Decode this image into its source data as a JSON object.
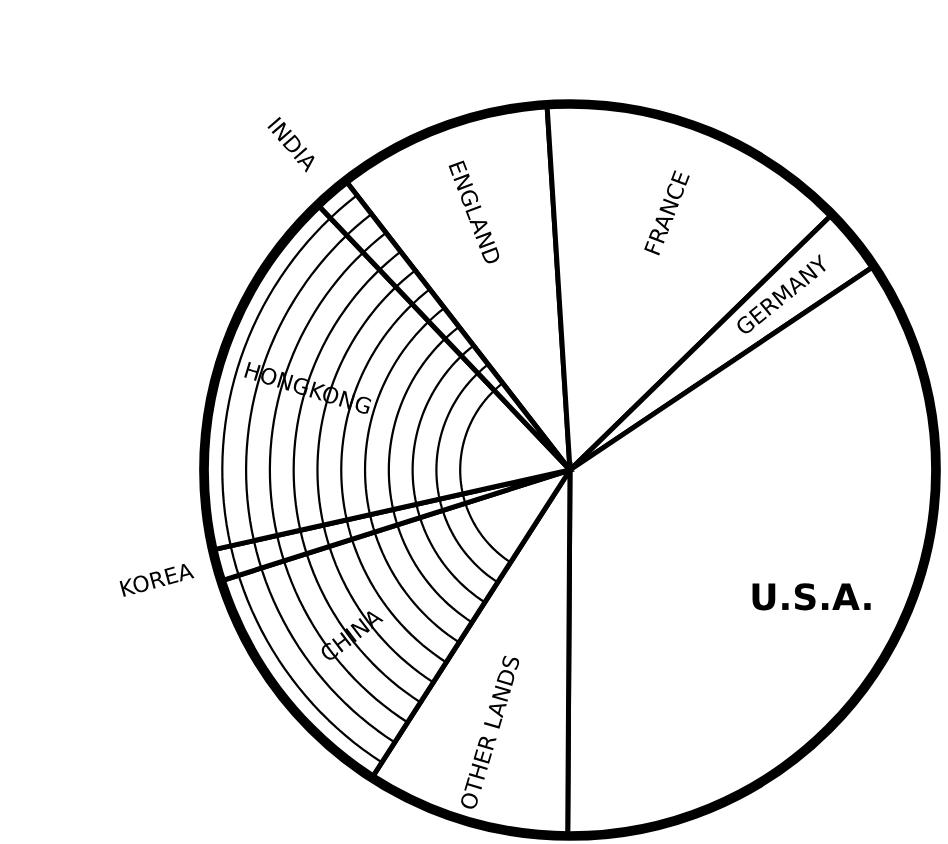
{
  "chart_data": {
    "type": "pie",
    "categories": [
      "ENGLAND",
      "FRANCE",
      "GERMANY",
      "U.S.A.",
      "OTHER LANDS",
      "CHINA",
      "KOREA",
      "HONGKONG",
      "INDIA"
    ],
    "values": [
      9.5,
      13.7,
      2.9,
      34.5,
      9.0,
      11.0,
      1.4,
      16.4,
      1.6
    ],
    "colors": [
      "#ffffff",
      "#ffffff",
      "#ffffff",
      "#ffffff",
      "#ffffff",
      "#ffffff",
      "#ffffff",
      "#ffffff",
      "#ffffff"
    ],
    "legend": false
  }
}
